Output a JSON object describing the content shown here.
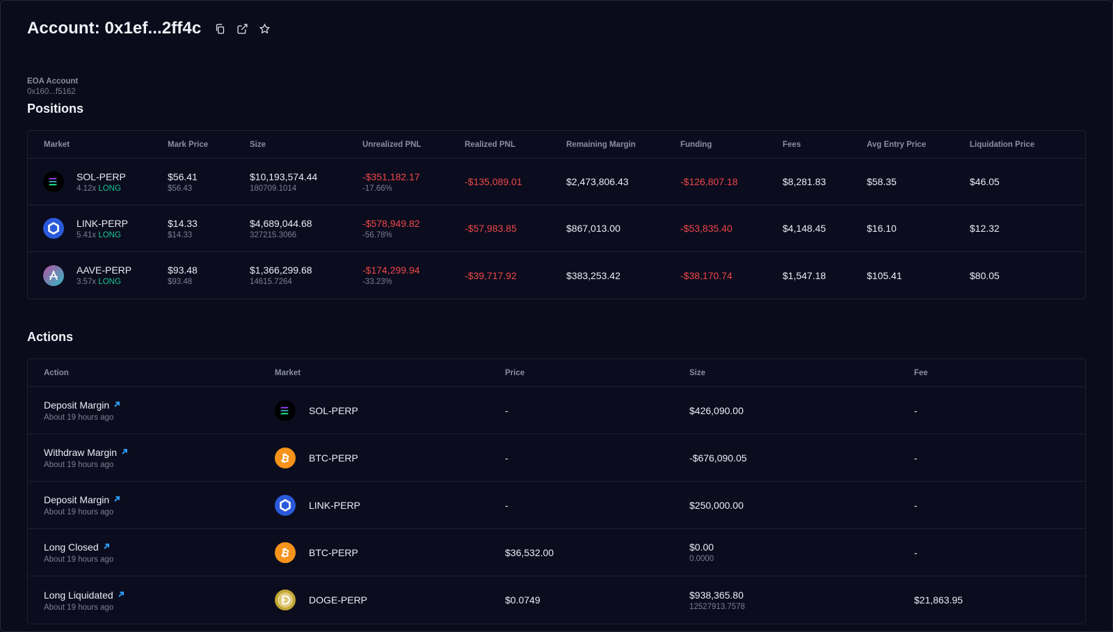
{
  "header": {
    "title": "Account: 0x1ef...2ff4c",
    "icons": [
      "copy-icon",
      "external-link-icon",
      "star-icon"
    ]
  },
  "eoa": {
    "label": "EOA Account",
    "address": "0x160...f5162"
  },
  "positions": {
    "title": "Positions",
    "columns": [
      "Market",
      "Mark Price",
      "Size",
      "Unrealized PNL",
      "Realized PNL",
      "Remaining Margin",
      "Funding",
      "Fees",
      "Avg Entry Price",
      "Liquidation Price"
    ],
    "rows": [
      {
        "market": "SOL-PERP",
        "coin": "sol",
        "leverage": "4.12x",
        "side": "LONG",
        "mark_price": "$56.41",
        "mark_price_sub": "$56.43",
        "size": "$10,193,574.44",
        "size_sub": "180709.1014",
        "unrealized_pnl": "-$351,182.17",
        "unrealized_pct": "-17.66%",
        "realized_pnl": "-$135,089.01",
        "remaining_margin": "$2,473,806.43",
        "funding": "-$126,807.18",
        "fees": "$8,281.83",
        "avg_entry": "$58.35",
        "liquidation": "$46.05"
      },
      {
        "market": "LINK-PERP",
        "coin": "link",
        "leverage": "5.41x",
        "side": "LONG",
        "mark_price": "$14.33",
        "mark_price_sub": "$14.33",
        "size": "$4,689,044.68",
        "size_sub": "327215.3066",
        "unrealized_pnl": "-$578,949.82",
        "unrealized_pct": "-56.78%",
        "realized_pnl": "-$57,983.85",
        "remaining_margin": "$867,013.00",
        "funding": "-$53,835.40",
        "fees": "$4,148.45",
        "avg_entry": "$16.10",
        "liquidation": "$12.32"
      },
      {
        "market": "AAVE-PERP",
        "coin": "aave",
        "leverage": "3.57x",
        "side": "LONG",
        "mark_price": "$93.48",
        "mark_price_sub": "$93.48",
        "size": "$1,366,299.68",
        "size_sub": "14615.7264",
        "unrealized_pnl": "-$174,299.94",
        "unrealized_pct": "-33.23%",
        "realized_pnl": "-$39,717.92",
        "remaining_margin": "$383,253.42",
        "funding": "-$38,170.74",
        "fees": "$1,547.18",
        "avg_entry": "$105.41",
        "liquidation": "$80.05"
      }
    ]
  },
  "actions": {
    "title": "Actions",
    "columns": [
      "Action",
      "Market",
      "Price",
      "Size",
      "Fee"
    ],
    "rows": [
      {
        "action": "Deposit Margin",
        "time": "About 19 hours ago",
        "market": "SOL-PERP",
        "coin": "sol",
        "price": "-",
        "size": "$426,090.00",
        "size_sub": "",
        "fee": "-"
      },
      {
        "action": "Withdraw Margin",
        "time": "About 19 hours ago",
        "market": "BTC-PERP",
        "coin": "btc",
        "price": "-",
        "size": "-$676,090.05",
        "size_sub": "",
        "fee": "-"
      },
      {
        "action": "Deposit Margin",
        "time": "About 19 hours ago",
        "market": "LINK-PERP",
        "coin": "link",
        "price": "-",
        "size": "$250,000.00",
        "size_sub": "",
        "fee": "-"
      },
      {
        "action": "Long Closed",
        "time": "About 19 hours ago",
        "market": "BTC-PERP",
        "coin": "btc",
        "price": "$36,532.00",
        "size": "$0.00",
        "size_sub": "0.0000",
        "fee": "-"
      },
      {
        "action": "Long Liquidated",
        "time": "About 19 hours ago",
        "market": "DOGE-PERP",
        "coin": "doge",
        "price": "$0.0749",
        "size": "$938,365.80",
        "size_sub": "12527913.7578",
        "fee": "$21,863.95"
      }
    ]
  },
  "colors": {
    "background": "#0a0b1b",
    "negative": "#f04848",
    "long": "#19c495",
    "link_arrow": "#2b9cf2"
  }
}
